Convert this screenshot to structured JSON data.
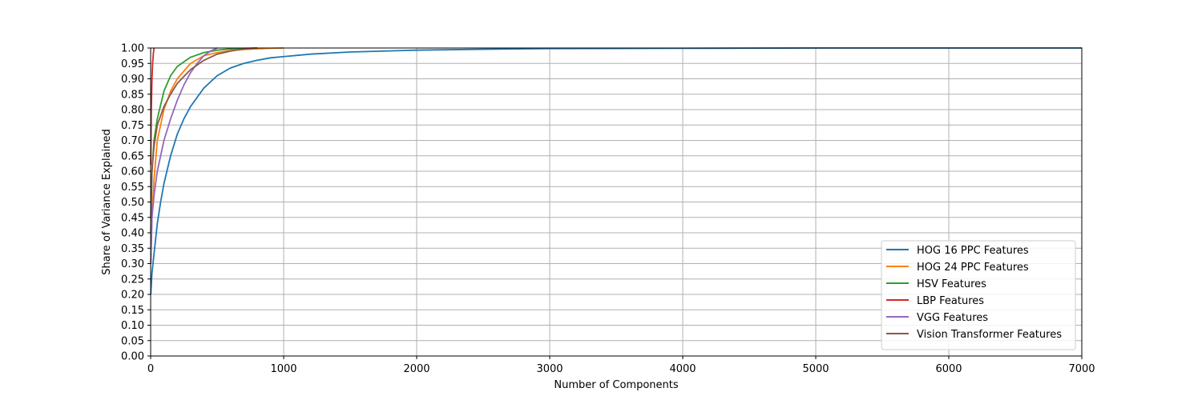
{
  "chart_data": {
    "type": "line",
    "title": "",
    "xlabel": "Number of Components",
    "ylabel": "Share of Variance Explained",
    "xlim": [
      0,
      7000
    ],
    "ylim": [
      0,
      1.0
    ],
    "x_ticks": [
      0,
      1000,
      2000,
      3000,
      4000,
      5000,
      6000,
      7000
    ],
    "x_tick_labels": [
      "0",
      "1000",
      "2000",
      "3000",
      "4000",
      "5000",
      "6000",
      "7000"
    ],
    "y_ticks": [
      0,
      0.05,
      0.1,
      0.15,
      0.2,
      0.25,
      0.3,
      0.35,
      0.4,
      0.45,
      0.5,
      0.55,
      0.6,
      0.65,
      0.7,
      0.75,
      0.8,
      0.85,
      0.9,
      0.95,
      1.0
    ],
    "y_tick_labels": [
      "0.00",
      "0.05",
      "0.10",
      "0.15",
      "0.20",
      "0.25",
      "0.30",
      "0.35",
      "0.40",
      "0.45",
      "0.50",
      "0.55",
      "0.60",
      "0.65",
      "0.70",
      "0.75",
      "0.80",
      "0.85",
      "0.90",
      "0.95",
      "1.00"
    ],
    "grid": true,
    "legend_position": "lower-right",
    "series": [
      {
        "name": "HOG 16 PPC Features",
        "color": "#1f77b4",
        "x": [
          1,
          10,
          25,
          50,
          75,
          100,
          150,
          200,
          250,
          300,
          400,
          500,
          600,
          700,
          800,
          900,
          1000,
          1200,
          1500,
          2000,
          2500,
          3000,
          4000,
          5000,
          6000,
          7000
        ],
        "y": [
          0.2,
          0.27,
          0.33,
          0.43,
          0.5,
          0.56,
          0.65,
          0.72,
          0.77,
          0.81,
          0.87,
          0.91,
          0.935,
          0.95,
          0.96,
          0.968,
          0.972,
          0.98,
          0.987,
          0.993,
          0.996,
          0.998,
          0.999,
          1.0,
          1.0,
          1.0
        ]
      },
      {
        "name": "HOG 24 PPC Features",
        "color": "#ff7f0e",
        "x": [
          1,
          10,
          25,
          50,
          100,
          150,
          200,
          300,
          400,
          500,
          600,
          700,
          800,
          900,
          1000
        ],
        "y": [
          0.3,
          0.45,
          0.57,
          0.7,
          0.8,
          0.86,
          0.9,
          0.95,
          0.975,
          0.985,
          0.992,
          0.995,
          0.997,
          0.999,
          1.0
        ]
      },
      {
        "name": "HSV Features",
        "color": "#2ca02c",
        "x": [
          1,
          10,
          25,
          50,
          100,
          150,
          200,
          300,
          400,
          500,
          600,
          700,
          800
        ],
        "y": [
          0.4,
          0.6,
          0.7,
          0.77,
          0.86,
          0.91,
          0.94,
          0.97,
          0.985,
          0.993,
          0.997,
          0.999,
          1.0
        ]
      },
      {
        "name": "LBP Features",
        "color": "#d62728",
        "x": [
          1,
          5,
          10,
          15,
          20,
          25
        ],
        "y": [
          0.62,
          0.8,
          0.9,
          0.95,
          0.98,
          1.0
        ]
      },
      {
        "name": "VGG Features",
        "color": "#9467bd",
        "x": [
          1,
          10,
          25,
          50,
          100,
          150,
          200,
          250,
          300,
          350,
          400,
          450,
          500
        ],
        "y": [
          0.3,
          0.45,
          0.52,
          0.6,
          0.7,
          0.77,
          0.83,
          0.88,
          0.92,
          0.95,
          0.975,
          0.99,
          1.0
        ]
      },
      {
        "name": "Vision Transformer Features",
        "color": "#8c564b",
        "x": [
          1,
          10,
          25,
          50,
          100,
          150,
          200,
          300,
          400,
          500,
          600,
          700,
          800
        ],
        "y": [
          0.45,
          0.6,
          0.68,
          0.75,
          0.81,
          0.85,
          0.885,
          0.93,
          0.96,
          0.98,
          0.99,
          0.997,
          1.0
        ]
      }
    ]
  }
}
